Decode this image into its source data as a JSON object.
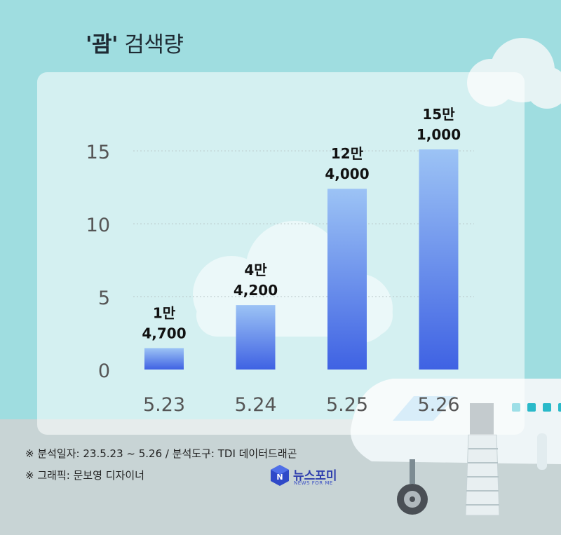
{
  "title": {
    "keyword": "'괌'",
    "rest": "검색량"
  },
  "chart_data": {
    "type": "bar",
    "title": "'괌' 검색량",
    "categories": [
      "5.23",
      "5.24",
      "5.25",
      "5.26"
    ],
    "values": [
      1.47,
      4.42,
      12.4,
      15.1
    ],
    "value_labels": [
      [
        "1만",
        "4,700"
      ],
      [
        "4만",
        "4,200"
      ],
      [
        "12만",
        "4,000"
      ],
      [
        "15만",
        "1,000"
      ]
    ],
    "yticks": [
      0,
      5,
      10,
      15
    ],
    "ylim": [
      0,
      16.5
    ],
    "grid": true,
    "colors": {
      "bar_top": "#9cc3f5",
      "bar_bottom": "#3f62e3",
      "axis_text": "#555555"
    }
  },
  "footer": {
    "line1": "※ 분석일자: 23.5.23 ~ 5.26  / 분석도구: TDI 데이터드래곤",
    "line2": "※ 그래픽: 문보영 디자이너"
  },
  "logo": {
    "name": "뉴스포미",
    "tagline": "NEWS FOR ME"
  }
}
